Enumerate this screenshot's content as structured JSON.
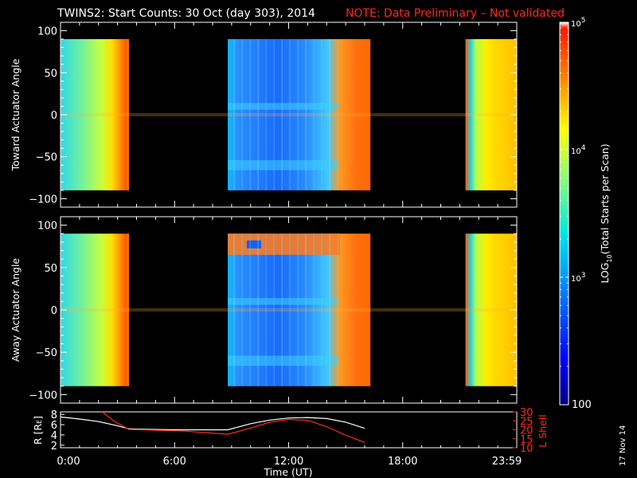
{
  "title": "TWINS2: Start Counts: 30 Oct (day 303), 2014",
  "note": "NOTE: Data Preliminary – Not validated",
  "stamp": "17 Nov 14",
  "colors": {
    "note": "#ff2a1a",
    "orbit_r": "#ffffff",
    "orbit_l": "#ff2a1a",
    "background": "#000000"
  },
  "chart_data": [
    {
      "type": "heatmap",
      "name": "toward-panel",
      "ylabel": "Toward Actuator Angle",
      "ylim": [
        -110,
        110
      ],
      "yticks": [
        "100",
        "50",
        "0",
        "−50",
        "−100"
      ],
      "ytick_values": [
        100,
        50,
        0,
        -50,
        -100
      ],
      "xlim_hours": [
        0,
        24
      ],
      "data_blocks_hours": [
        [
          0.0,
          3.6
        ],
        [
          8.8,
          16.3
        ],
        [
          21.3,
          23.99
        ]
      ],
      "angle_range": [
        -90,
        90
      ]
    },
    {
      "type": "heatmap",
      "name": "away-panel",
      "ylabel": "Away Actuator Angle",
      "ylim": [
        -110,
        110
      ],
      "yticks": [
        "100",
        "50",
        "0",
        "−50",
        "−100"
      ],
      "ytick_values": [
        100,
        50,
        0,
        -50,
        -100
      ],
      "xlim_hours": [
        0,
        24
      ],
      "data_blocks_hours": [
        [
          0.0,
          3.6
        ],
        [
          8.8,
          16.3
        ],
        [
          21.3,
          23.99
        ]
      ],
      "angle_range": [
        -90,
        90
      ]
    },
    {
      "type": "line",
      "name": "orbit-panel",
      "xlabel": "Time (UT)",
      "xticks": [
        "0:00",
        "6:00",
        "12:00",
        "18:00",
        "23:59"
      ],
      "xtick_hours": [
        0,
        6,
        12,
        18,
        23.98
      ],
      "left_axis": {
        "label": "R [R",
        "label_sub": "E",
        "label_end": "]",
        "ylim": [
          1.5,
          8.5
        ],
        "yticks": [
          "8",
          "6",
          "4",
          "2"
        ],
        "ytick_values": [
          8,
          6,
          4,
          2
        ]
      },
      "right_axis": {
        "label": "L Shell",
        "ylim": [
          10,
          30
        ],
        "yticks": [
          "30",
          "25",
          "20",
          "15",
          "10"
        ],
        "ytick_values": [
          30,
          25,
          20,
          15,
          10
        ]
      },
      "series": [
        {
          "name": "R",
          "axis": "left",
          "x": [
            0.0,
            1.0,
            2.0,
            3.0,
            3.6,
            4.5,
            6.0,
            8.8,
            10.0,
            11.0,
            12.0,
            13.0,
            14.0,
            15.0,
            16.0
          ],
          "y": [
            7.5,
            7.1,
            6.6,
            5.8,
            5.2,
            5.1,
            5.0,
            5.0,
            6.2,
            6.9,
            7.3,
            7.4,
            7.2,
            6.5,
            5.3
          ]
        },
        {
          "name": "L Shell",
          "axis": "right",
          "x": [
            2.2,
            2.8,
            3.6,
            5.0,
            6.5,
            8.8,
            10.0,
            11.0,
            12.0,
            13.0,
            14.0,
            15.0,
            16.0
          ],
          "y": [
            30.0,
            25.0,
            20.2,
            19.8,
            19.3,
            17.5,
            21.0,
            24.2,
            25.8,
            25.3,
            21.8,
            17.0,
            13.0
          ]
        }
      ]
    }
  ],
  "colorbar": {
    "label_pre": "LOG",
    "label_sub": "10",
    "label_post": "(Total Starts per Scan)",
    "scale": "log",
    "range": [
      100,
      100000
    ],
    "tick_base": [
      "10",
      "10",
      "10"
    ],
    "tick_exp": [
      "5",
      "4",
      "3"
    ],
    "bottom_label": "100",
    "colors": [
      "#00007f",
      "#0000ff",
      "#0080ff",
      "#00e0e0",
      "#80ff80",
      "#ffff00",
      "#ff8000",
      "#ff0000",
      "#ffffff"
    ]
  }
}
